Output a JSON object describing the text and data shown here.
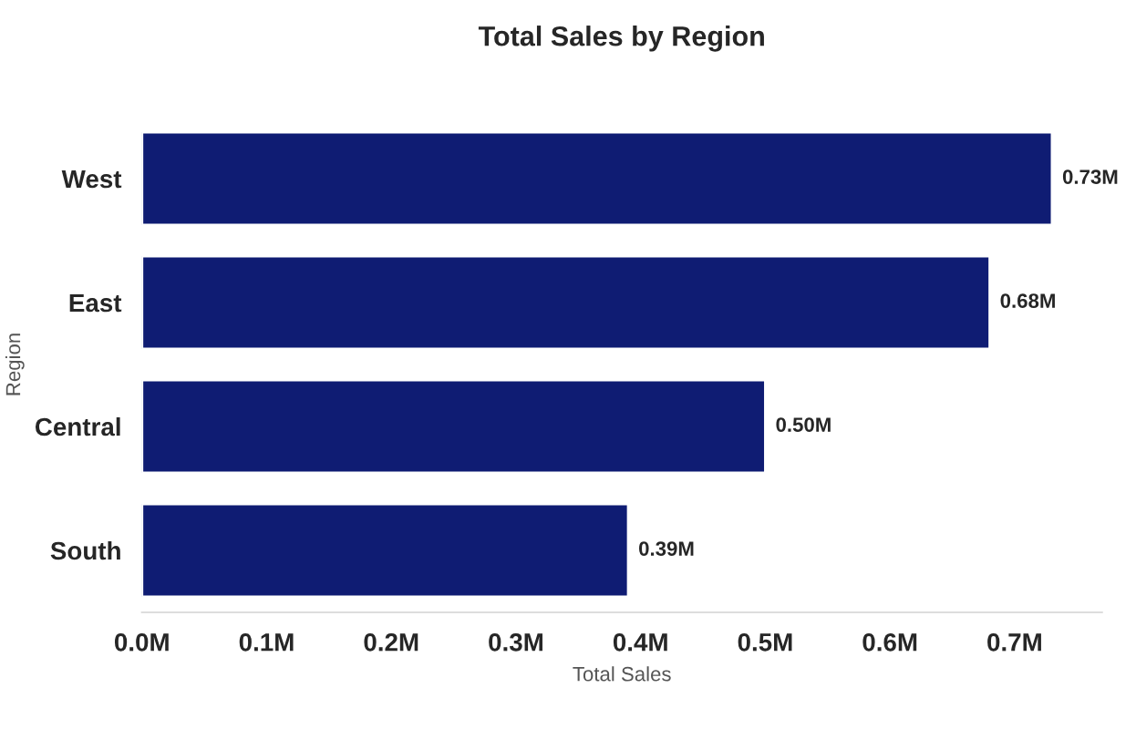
{
  "chart_data": {
    "type": "bar",
    "orientation": "horizontal",
    "title": "Total Sales by Region",
    "xlabel": "Total Sales",
    "ylabel": "Region",
    "categories": [
      "West",
      "East",
      "Central",
      "South"
    ],
    "values": [
      0.73,
      0.68,
      0.5,
      0.39
    ],
    "value_labels": [
      "0.73M",
      "0.68M",
      "0.50M",
      "0.39M"
    ],
    "color": "#0f1c73",
    "xlim": [
      0,
      0.77
    ],
    "xticks": [
      {
        "value": 0,
        "label": "0.0M"
      },
      {
        "value": 0.1,
        "label": "0.1M"
      },
      {
        "value": 0.2,
        "label": "0.2M"
      },
      {
        "value": 0.3,
        "label": "0.3M"
      },
      {
        "value": 0.4,
        "label": "0.4M"
      },
      {
        "value": 0.5,
        "label": "0.5M"
      },
      {
        "value": 0.6,
        "label": "0.6M"
      },
      {
        "value": 0.7,
        "label": "0.7M"
      }
    ],
    "grid": false,
    "legend": false
  }
}
